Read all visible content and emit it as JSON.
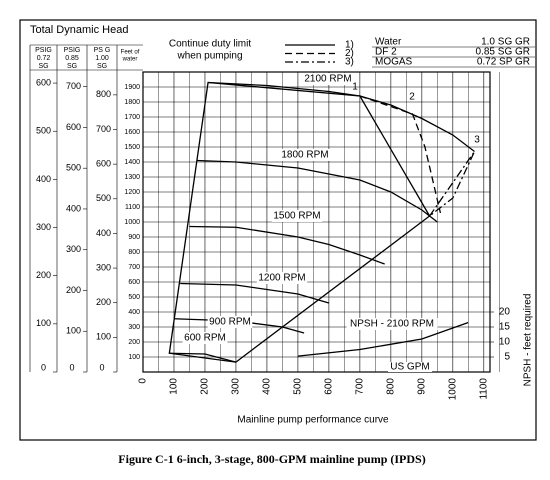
{
  "chart_data": {
    "type": "line",
    "y_label": "Total Dynamic Head",
    "x_label": "Mainline pump performance curve",
    "x_unit_label": "US GPM",
    "caption": "Figure C-1  6-inch, 3-stage, 800-GPM mainline pump (IPDS)",
    "y_header": [
      "Feet of",
      "water"
    ],
    "xlim": [
      0,
      1120
    ],
    "xticks": [
      0,
      100,
      200,
      300,
      400,
      500,
      600,
      700,
      800,
      900,
      1000,
      1100
    ],
    "ylim": [
      0,
      2000
    ],
    "yticks": [
      100,
      200,
      300,
      400,
      500,
      600,
      700,
      800,
      900,
      1000,
      1100,
      1200,
      1300,
      1400,
      1500,
      1600,
      1700,
      1800,
      1900
    ],
    "y2lim": [
      0,
      100
    ],
    "y2ticks": [
      5,
      10,
      15,
      20
    ],
    "y2_label": "NPSH - feet required",
    "grid": true,
    "scales": [
      {
        "header": [
          "PSIG",
          "0.72",
          "SG"
        ],
        "ylim": [
          0,
          623
        ],
        "yticks": [
          0,
          100,
          200,
          300,
          400,
          500,
          600
        ]
      },
      {
        "header": [
          "PSIG",
          "0.85",
          "SG"
        ],
        "ylim": [
          0,
          736
        ],
        "yticks": [
          0,
          100,
          200,
          300,
          400,
          500,
          600,
          700
        ]
      },
      {
        "header": [
          "PS G",
          "1.00",
          "SG"
        ],
        "ylim": [
          0,
          866
        ],
        "yticks": [
          0,
          100,
          200,
          300,
          400,
          500,
          600,
          700,
          800
        ]
      }
    ],
    "legend_title": [
      "Continue duty limit",
      "when pumping"
    ],
    "fluids": [
      {
        "name": "Water",
        "grade": "1.0  SG GR"
      },
      {
        "name": "DF 2",
        "grade": "0.85 SG GR"
      },
      {
        "name": "MOGAS",
        "grade": "0.72 SP GR"
      }
    ],
    "series": [
      {
        "name": "2100 RPM",
        "color": "#000000",
        "x": [
          210,
          400,
          600,
          700,
          800,
          900,
          1000,
          1070
        ],
        "values": [
          1930,
          1910,
          1870,
          1840,
          1780,
          1690,
          1580,
          1470
        ]
      },
      {
        "name": "1800 RPM",
        "color": "#000000",
        "x": [
          175,
          300,
          500,
          700,
          800,
          900,
          950
        ],
        "values": [
          1410,
          1400,
          1360,
          1280,
          1200,
          1080,
          1000
        ]
      },
      {
        "name": "1500 RPM",
        "color": "#000000",
        "x": [
          150,
          300,
          500,
          600,
          700,
          780
        ],
        "values": [
          970,
          965,
          900,
          850,
          780,
          720
        ]
      },
      {
        "name": "1200 RPM",
        "color": "#000000",
        "x": [
          120,
          300,
          500,
          600
        ],
        "values": [
          590,
          580,
          520,
          460
        ]
      },
      {
        "name": "900 RPM",
        "color": "#000000",
        "x": [
          100,
          300,
          450,
          520
        ],
        "values": [
          355,
          340,
          300,
          260
        ]
      },
      {
        "name": "600 RPM",
        "color": "#000000",
        "x": [
          85,
          200,
          300
        ],
        "values": [
          125,
          120,
          66
        ]
      },
      {
        "name": "NPSH - 2100 RPM",
        "color": "#000000",
        "axis": "y2",
        "x": [
          500,
          700,
          900,
          1050
        ],
        "values": [
          5.3,
          7.5,
          11,
          16.5
        ]
      }
    ],
    "limits": [
      {
        "name": "1)",
        "tag": "1",
        "dash": "solid",
        "x": [
          300,
          85,
          210,
          700,
          925,
          300
        ],
        "values": [
          66,
          125,
          1930,
          1840,
          1040,
          66
        ]
      },
      {
        "name": "2)",
        "tag": "2",
        "dash": "dashed",
        "x": [
          700,
          870,
          910,
          960
        ],
        "values": [
          1840,
          1720,
          1500,
          1060
        ]
      },
      {
        "name": "3)",
        "tag": "3",
        "dash": "dashdot",
        "x": [
          925,
          1070,
          1000,
          925
        ],
        "values": [
          1040,
          1470,
          1160,
          1040
        ]
      }
    ]
  }
}
